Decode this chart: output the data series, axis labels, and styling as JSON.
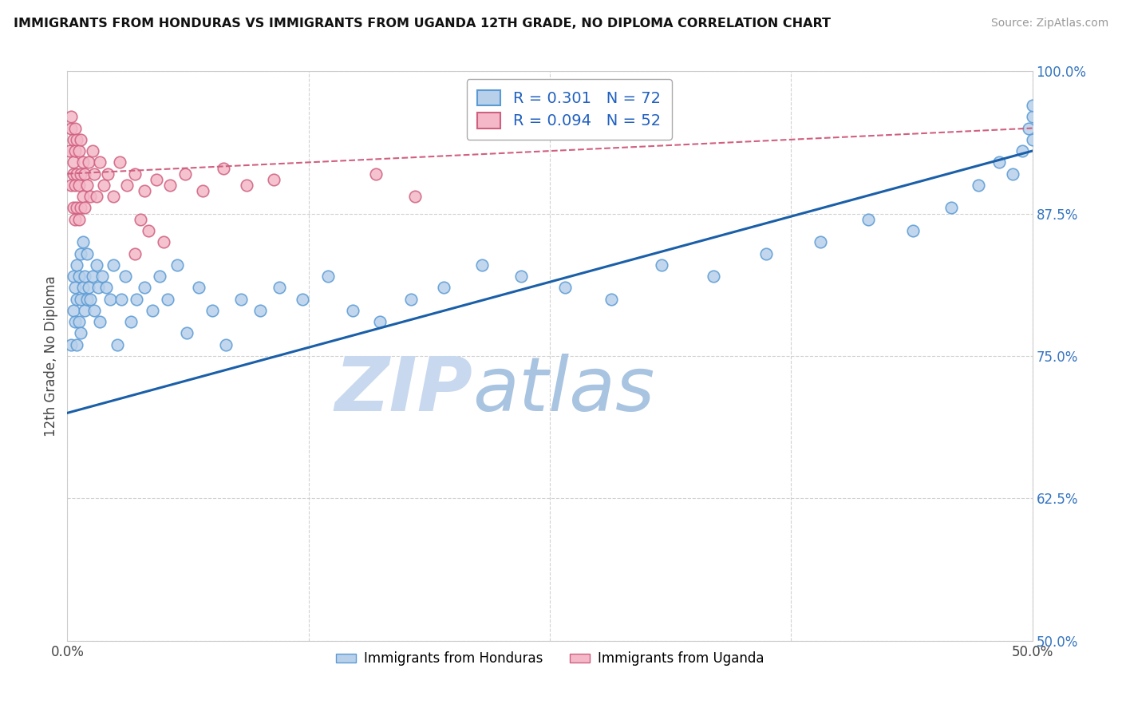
{
  "title": "IMMIGRANTS FROM HONDURAS VS IMMIGRANTS FROM UGANDA 12TH GRADE, NO DIPLOMA CORRELATION CHART",
  "source_text": "Source: ZipAtlas.com",
  "ylabel": "12th Grade, No Diploma",
  "xlim": [
    0.0,
    0.5
  ],
  "ylim": [
    0.5,
    1.0
  ],
  "xticks": [
    0.0,
    0.125,
    0.25,
    0.375,
    0.5
  ],
  "xticklabels": [
    "0.0%",
    "",
    "",
    "",
    "50.0%"
  ],
  "yticks": [
    0.5,
    0.625,
    0.75,
    0.875,
    1.0
  ],
  "yticklabels": [
    "50.0%",
    "62.5%",
    "75.0%",
    "87.5%",
    "100.0%"
  ],
  "honduras_R": 0.301,
  "honduras_N": 72,
  "uganda_R": 0.094,
  "uganda_N": 52,
  "honduras_color": "#b8d0ea",
  "honduras_edge": "#5b9bd5",
  "uganda_color": "#f4b8c8",
  "uganda_edge": "#d06080",
  "trend_honduras_color": "#1a5fa8",
  "trend_uganda_color": "#d06080",
  "watermark_zip_color": "#c8d8ee",
  "watermark_atlas_color": "#a8c4e0",
  "legend_label_honduras": "Immigrants from Honduras",
  "legend_label_uganda": "Immigrants from Uganda",
  "honduras_x": [
    0.002,
    0.003,
    0.003,
    0.004,
    0.004,
    0.005,
    0.005,
    0.005,
    0.006,
    0.006,
    0.007,
    0.007,
    0.007,
    0.008,
    0.008,
    0.009,
    0.009,
    0.01,
    0.01,
    0.011,
    0.012,
    0.013,
    0.014,
    0.015,
    0.016,
    0.017,
    0.018,
    0.02,
    0.022,
    0.024,
    0.026,
    0.028,
    0.03,
    0.033,
    0.036,
    0.04,
    0.044,
    0.048,
    0.052,
    0.057,
    0.062,
    0.068,
    0.075,
    0.082,
    0.09,
    0.1,
    0.11,
    0.122,
    0.135,
    0.148,
    0.162,
    0.178,
    0.195,
    0.215,
    0.235,
    0.258,
    0.282,
    0.308,
    0.335,
    0.362,
    0.39,
    0.415,
    0.438,
    0.458,
    0.472,
    0.483,
    0.49,
    0.495,
    0.498,
    0.5,
    0.5,
    0.5
  ],
  "honduras_y": [
    0.76,
    0.79,
    0.82,
    0.78,
    0.81,
    0.83,
    0.76,
    0.8,
    0.82,
    0.78,
    0.8,
    0.84,
    0.77,
    0.81,
    0.85,
    0.79,
    0.82,
    0.8,
    0.84,
    0.81,
    0.8,
    0.82,
    0.79,
    0.83,
    0.81,
    0.78,
    0.82,
    0.81,
    0.8,
    0.83,
    0.76,
    0.8,
    0.82,
    0.78,
    0.8,
    0.81,
    0.79,
    0.82,
    0.8,
    0.83,
    0.77,
    0.81,
    0.79,
    0.76,
    0.8,
    0.79,
    0.81,
    0.8,
    0.82,
    0.79,
    0.78,
    0.8,
    0.81,
    0.83,
    0.82,
    0.81,
    0.8,
    0.83,
    0.82,
    0.84,
    0.85,
    0.87,
    0.86,
    0.88,
    0.9,
    0.92,
    0.91,
    0.93,
    0.95,
    0.96,
    0.94,
    0.97
  ],
  "uganda_x": [
    0.001,
    0.002,
    0.002,
    0.002,
    0.003,
    0.003,
    0.003,
    0.003,
    0.004,
    0.004,
    0.004,
    0.004,
    0.005,
    0.005,
    0.005,
    0.006,
    0.006,
    0.006,
    0.007,
    0.007,
    0.007,
    0.008,
    0.008,
    0.009,
    0.009,
    0.01,
    0.011,
    0.012,
    0.013,
    0.014,
    0.015,
    0.017,
    0.019,
    0.021,
    0.024,
    0.027,
    0.031,
    0.035,
    0.04,
    0.046,
    0.053,
    0.061,
    0.07,
    0.081,
    0.093,
    0.107,
    0.035,
    0.042,
    0.16,
    0.038,
    0.05,
    0.18
  ],
  "uganda_y": [
    0.93,
    0.9,
    0.95,
    0.96,
    0.88,
    0.91,
    0.94,
    0.92,
    0.87,
    0.9,
    0.93,
    0.95,
    0.88,
    0.91,
    0.94,
    0.87,
    0.9,
    0.93,
    0.88,
    0.91,
    0.94,
    0.89,
    0.92,
    0.88,
    0.91,
    0.9,
    0.92,
    0.89,
    0.93,
    0.91,
    0.89,
    0.92,
    0.9,
    0.91,
    0.89,
    0.92,
    0.9,
    0.91,
    0.895,
    0.905,
    0.9,
    0.91,
    0.895,
    0.915,
    0.9,
    0.905,
    0.84,
    0.86,
    0.91,
    0.87,
    0.85,
    0.89
  ]
}
